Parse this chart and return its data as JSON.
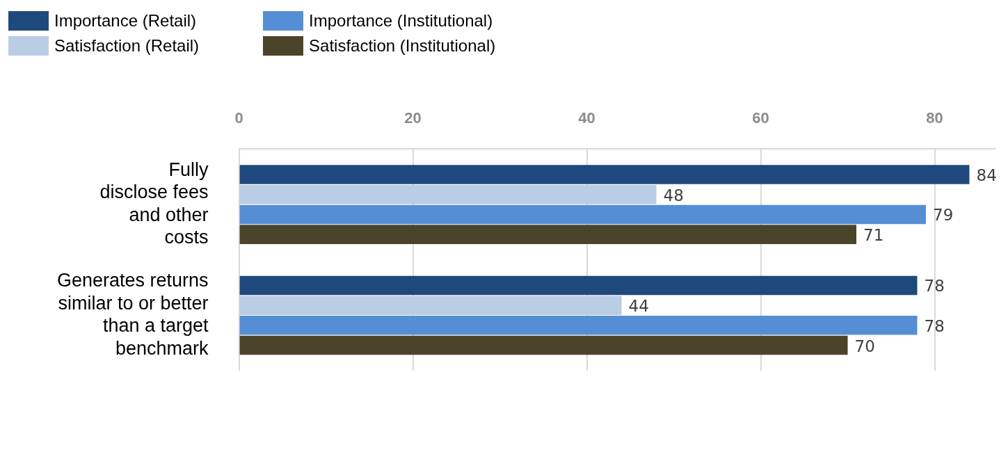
{
  "chart_data": {
    "type": "bar",
    "orientation": "horizontal",
    "categories": [
      "Fully\ndisclose fees\nand other\ncosts",
      "Generates returns\nsimilar to or better\nthan a target\nbenchmark"
    ],
    "series": [
      {
        "name": "Importance (Retail)",
        "color": "#1f497d",
        "values": [
          84,
          78
        ]
      },
      {
        "name": "Satisfaction (Retail)",
        "color": "#b9cde5",
        "values": [
          48,
          44
        ]
      },
      {
        "name": "Importance (Institutional)",
        "color": "#558ed5",
        "values": [
          79,
          78
        ]
      },
      {
        "name": "Satisfaction (Institutional)",
        "color": "#4a452a",
        "values": [
          71,
          70
        ]
      }
    ],
    "xlim": [
      0,
      87
    ],
    "xticks": [
      0,
      20,
      40,
      60,
      80
    ],
    "grid": "x",
    "legend": "top left",
    "data_labels": true
  }
}
